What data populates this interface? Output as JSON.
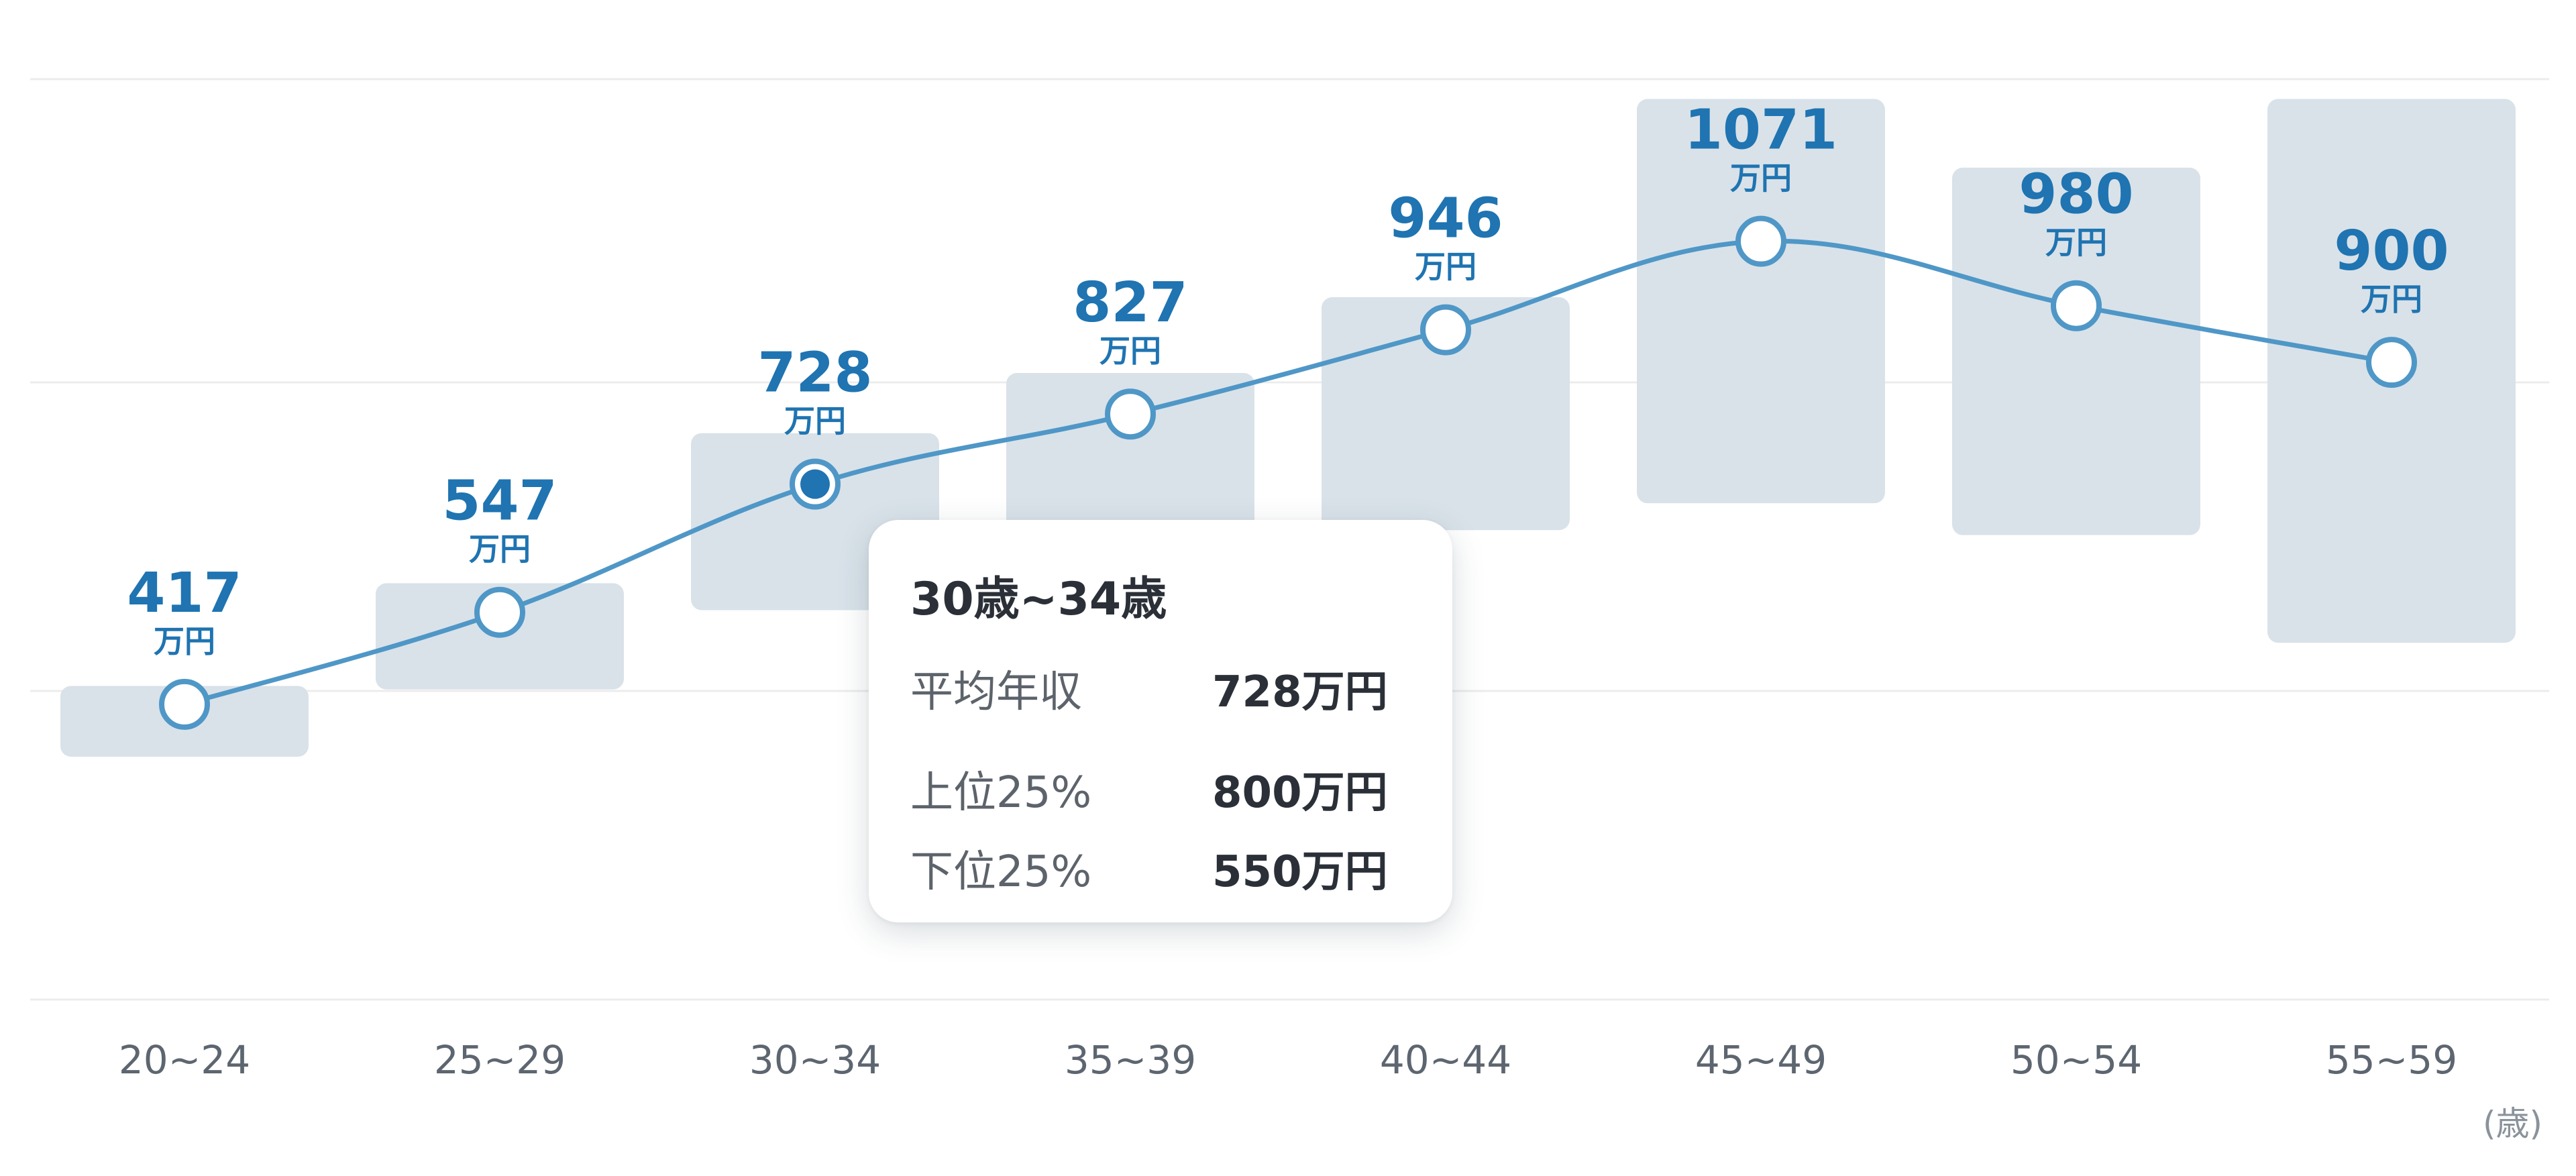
{
  "colors": {
    "accent": "#1f74b1",
    "line": "#4f97c7",
    "band": "#d9e2e9",
    "grid": "#ececec",
    "tick_text": "#5d6670",
    "tooltip_text": "#2b3038",
    "tooltip_label": "#5d636b"
  },
  "chart_data": {
    "type": "line",
    "categories": [
      "20~24",
      "25~29",
      "30~34",
      "35~39",
      "40~44",
      "45~49",
      "50~54",
      "55~59"
    ],
    "series": [
      {
        "values": [
          417,
          547,
          728,
          827,
          946,
          1071,
          980,
          900
        ]
      }
    ],
    "ranges": [
      {
        "upper": 443,
        "lower": 343
      },
      {
        "upper": 588,
        "lower": 438
      },
      {
        "upper": 800,
        "lower": 550
      },
      {
        "upper": 885,
        "lower": 650
      },
      {
        "upper": 992,
        "lower": 663
      },
      {
        "upper": 1272,
        "lower": 701
      },
      {
        "upper": 1175,
        "lower": 656
      },
      {
        "upper": 1272,
        "lower": 504
      }
    ],
    "value_unit": "万円",
    "x_unit": "(歳)",
    "ylim": [
      0,
      1300
    ],
    "grid": true,
    "highlighted_index": 2
  },
  "tooltip": {
    "title": "30歳~34歳",
    "rows": [
      {
        "label": "平均年収",
        "value": "728万円"
      },
      {
        "label": "上位25%",
        "value": "800万円"
      },
      {
        "label": "下位25%",
        "value": "550万円"
      }
    ]
  }
}
